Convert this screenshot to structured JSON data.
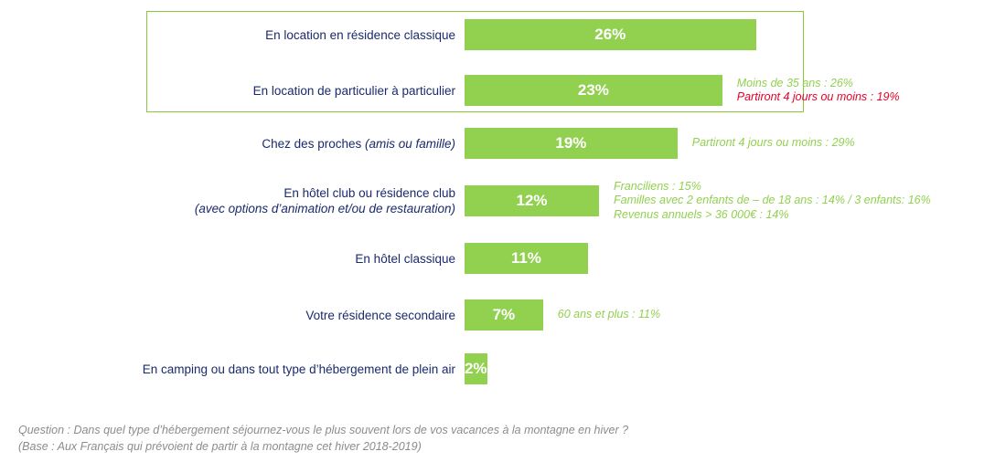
{
  "chart_data": {
    "type": "bar",
    "orientation": "horizontal",
    "xlim": [
      0,
      30
    ],
    "bar_color": "#92d050",
    "highlight_color": "#8cc63f",
    "label_color": "#1a2a6c",
    "note_green": "#92d050",
    "note_red": "#e8002a",
    "categories": [
      {
        "label": "En location en résidence classique",
        "sub": "",
        "value": 26,
        "value_label": "26%",
        "highlighted": true,
        "notes": []
      },
      {
        "label": "En location de particulier à particulier",
        "sub": "",
        "value": 23,
        "value_label": "23%",
        "highlighted": true,
        "notes": [
          {
            "text": "Moins de 35 ans : 26%",
            "color": "green"
          },
          {
            "text": "Partiront 4 jours ou moins : 19%",
            "color": "red"
          }
        ]
      },
      {
        "label": "Chez des proches ",
        "label_italic": "(amis ou famille)",
        "sub": "",
        "value": 19,
        "value_label": "19%",
        "highlighted": false,
        "notes": [
          {
            "text": "Partiront 4 jours ou moins : 29%",
            "color": "green"
          }
        ]
      },
      {
        "label": "En hôtel club ou résidence club",
        "sub": "(avec options d’animation et/ou de restauration)",
        "value": 12,
        "value_label": "12%",
        "highlighted": false,
        "notes": [
          {
            "text": "Franciliens : 15%",
            "color": "green"
          },
          {
            "text": "Familles avec 2 enfants de – de 18 ans : 14% / 3 enfants: 16%",
            "color": "green"
          },
          {
            "text": "Revenus annuels > 36 000€ : 14%",
            "color": "green"
          }
        ]
      },
      {
        "label": "En hôtel classique",
        "sub": "",
        "value": 11,
        "value_label": "11%",
        "highlighted": false,
        "notes": []
      },
      {
        "label": "Votre résidence secondaire",
        "sub": "",
        "value": 7,
        "value_label": "7%",
        "highlighted": false,
        "notes": [
          {
            "text": "60 ans et plus : 11%",
            "color": "green"
          }
        ]
      },
      {
        "label": "En camping ou dans tout type d’hébergement de plein air",
        "sub": "",
        "value": 2,
        "value_label": "2%",
        "highlighted": false,
        "notes": []
      }
    ]
  },
  "footnote": {
    "question": "Question : Dans quel type d’hébergement séjournez-vous le plus souvent lors de vos vacances à la montagne en hiver ?",
    "base": "(Base : Aux Français qui prévoient de partir à la montagne cet hiver 2018-2019)"
  }
}
